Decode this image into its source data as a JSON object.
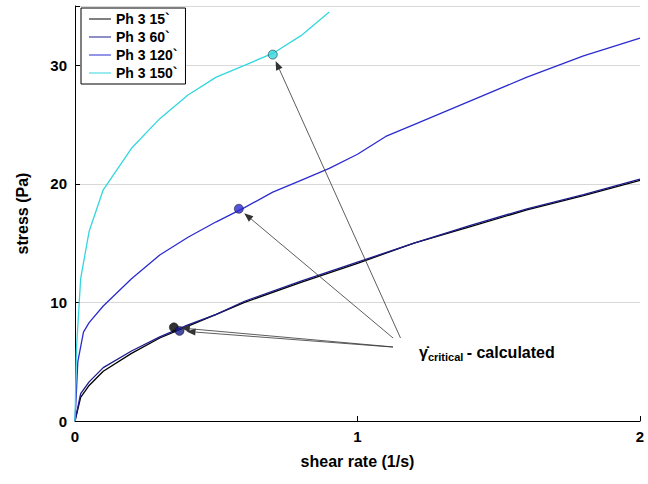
{
  "chart_data": {
    "type": "line",
    "x_label": "shear rate (1/s)",
    "y_label": "stress (Pa)",
    "xlim": [
      0,
      2
    ],
    "xticks": [
      0,
      1,
      2
    ],
    "ylim": [
      0,
      35
    ],
    "yticks": [
      0,
      10,
      20,
      30
    ],
    "grid": true,
    "legend": "upper left",
    "series": [
      {
        "name": "Ph 3 15`",
        "color": "#000000",
        "x": [
          0,
          0.02,
          0.05,
          0.1,
          0.2,
          0.3,
          0.4,
          0.5,
          0.6,
          0.8,
          1,
          1.2,
          1.4,
          1.6,
          1.8,
          2
        ],
        "values": [
          0,
          2,
          3,
          4.2,
          5.7,
          7,
          8,
          9,
          10,
          11.7,
          13.3,
          15,
          16.4,
          17.8,
          19,
          20.3
        ]
      },
      {
        "name": "Ph 3 60`",
        "color": "#1c1c8c",
        "x": [
          0,
          0.02,
          0.05,
          0.1,
          0.2,
          0.3,
          0.4,
          0.5,
          0.6,
          0.8,
          1,
          1.2,
          1.4,
          1.6,
          1.8,
          2
        ],
        "values": [
          0,
          2.3,
          3.3,
          4.5,
          5.9,
          7.1,
          8.1,
          9,
          10.1,
          11.8,
          13.4,
          15,
          16.5,
          17.9,
          19.1,
          20.4
        ]
      },
      {
        "name": "Ph 3 120`",
        "color": "#2b2bd0",
        "x": [
          0,
          0.01,
          0.03,
          0.05,
          0.1,
          0.2,
          0.3,
          0.4,
          0.5,
          0.6,
          0.7,
          0.8,
          0.9,
          1,
          1.1,
          1.2,
          1.4,
          1.6,
          1.8,
          2
        ],
        "values": [
          0,
          5,
          7.5,
          8.3,
          9.7,
          12,
          14,
          15.5,
          16.8,
          18,
          19.3,
          20.3,
          21.3,
          22.5,
          24,
          25,
          27,
          29,
          30.8,
          32.3
        ]
      },
      {
        "name": "Ph 3 150`",
        "color": "#33d6e0",
        "x": [
          0,
          0.005,
          0.02,
          0.05,
          0.1,
          0.2,
          0.3,
          0.4,
          0.5,
          0.6,
          0.7,
          0.8,
          0.9
        ],
        "values": [
          0,
          6,
          12,
          16,
          19.5,
          23,
          25.5,
          27.5,
          29,
          30,
          31,
          32.5,
          34.5
        ]
      }
    ],
    "annotation": {
      "symbol": "γ̇",
      "subscript": "critical",
      "text": "- calculated",
      "points": [
        {
          "series": "Ph 3 15`",
          "x": 0.35,
          "y": 7.9
        },
        {
          "series": "Ph 3 60`",
          "x": 0.37,
          "y": 7.6
        },
        {
          "series": "Ph 3 120`",
          "x": 0.58,
          "y": 17.9
        },
        {
          "series": "Ph 3 150`",
          "x": 0.7,
          "y": 30.9
        }
      ]
    }
  }
}
